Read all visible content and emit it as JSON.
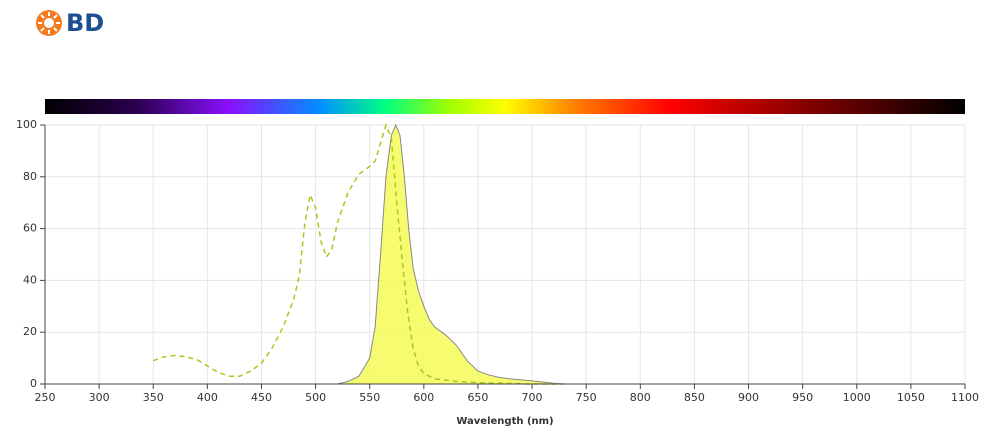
{
  "logo": "BD",
  "chart_data": {
    "type": "line",
    "xlabel": "Wavelength (nm)",
    "xlim": [
      250,
      1100
    ],
    "xticks": [
      250,
      300,
      350,
      400,
      450,
      500,
      550,
      600,
      650,
      700,
      750,
      800,
      850,
      900,
      950,
      1000,
      1050,
      1100
    ],
    "ylim": [
      0,
      100
    ],
    "yticks": [
      0,
      20,
      40,
      60,
      80,
      100
    ],
    "grid": true,
    "series": [
      {
        "color": "#a9c81e",
        "style": "dashed",
        "fill": false,
        "x": [
          350,
          360,
          370,
          380,
          390,
          400,
          410,
          420,
          430,
          440,
          450,
          460,
          470,
          480,
          485,
          490,
          495,
          500,
          505,
          510,
          515,
          520,
          530,
          540,
          550,
          555,
          560,
          565,
          570,
          575,
          580,
          585,
          590,
          595,
          600,
          610,
          620,
          630,
          650,
          700,
          730
        ],
        "values": [
          9,
          10.5,
          11,
          10.5,
          9.5,
          7,
          4.5,
          3,
          3,
          5,
          8,
          14,
          22,
          33,
          42,
          62,
          73,
          68,
          55,
          49,
          52,
          62,
          74,
          81,
          84,
          86,
          93,
          100,
          95,
          70,
          48,
          28,
          14,
          7,
          4,
          2,
          1.5,
          1,
          0.5,
          0,
          0
        ]
      },
      {
        "color": "#f4fa4c",
        "style": "solid",
        "fill": true,
        "x": [
          520,
          530,
          540,
          550,
          555,
          560,
          565,
          570,
          574,
          578,
          582,
          586,
          590,
          595,
          600,
          605,
          610,
          620,
          630,
          640,
          650,
          660,
          670,
          680,
          700,
          720,
          730
        ],
        "values": [
          0,
          1,
          3,
          10,
          22,
          50,
          80,
          96,
          100,
          96,
          80,
          60,
          45,
          36,
          30,
          25,
          22,
          19,
          15,
          9,
          5,
          3.5,
          2.5,
          2,
          1.2,
          0.3,
          0
        ]
      }
    ]
  }
}
